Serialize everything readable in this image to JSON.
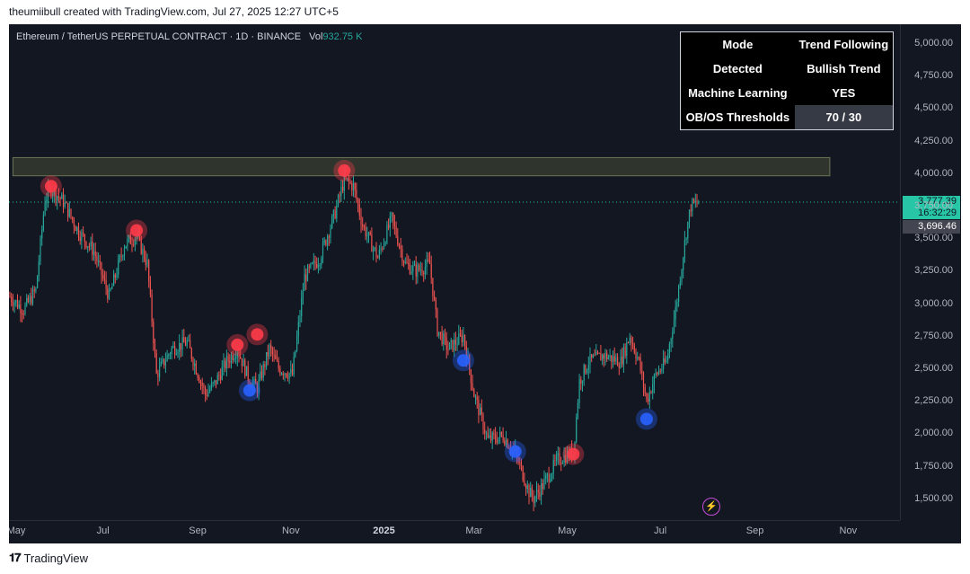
{
  "header": {
    "created_text": "theumiibull created with TradingView.com, Jul 27, 2025 12:27 UTC+5"
  },
  "symbol": {
    "title": "Ethereum / TetherUS PERPETUAL CONTRACT · 1D · BINANCE",
    "vol_label": "Vol",
    "vol_value": "932.75 K"
  },
  "info_table": {
    "rows": [
      {
        "label": "Mode",
        "value": "Trend Following"
      },
      {
        "label": "Detected",
        "value": "Bullish Trend"
      },
      {
        "label": "Machine Learning",
        "value": "YES"
      },
      {
        "label": "OB/OS Thresholds",
        "value": "70 / 30"
      }
    ]
  },
  "price_tags": {
    "last_price": "3,777.39",
    "countdown": "16:32:29",
    "prev_close": "3,696.46"
  },
  "footer": {
    "logo_text": "TradingView"
  },
  "colors": {
    "up": "#26a69a",
    "down": "#ef5350",
    "background": "#131722",
    "resistance_zone": "#3a4032",
    "signal_red": "#ff3b4a",
    "signal_blue": "#2962ff"
  },
  "chart_data": {
    "type": "candlestick",
    "title": "Ethereum / TetherUS PERPETUAL CONTRACT · 1D · BINANCE",
    "yticks": [
      "5,000.00",
      "4,750.00",
      "4,500.00",
      "4,250.00",
      "4,000.00",
      "3,750.00",
      "3,500.00",
      "3,250.00",
      "3,000.00",
      "2,750.00",
      "2,500.00",
      "2,250.00",
      "2,000.00",
      "1,750.00",
      "1,500.00"
    ],
    "ylim": [
      1400,
      5100
    ],
    "x_tick_labels": [
      "May",
      "Jul",
      "Sep",
      "Nov",
      "2025",
      "Mar",
      "May",
      "Jul",
      "Sep",
      "Nov"
    ],
    "close_series": [
      {
        "d": "2024-05-01",
        "v": 3050
      },
      {
        "d": "2024-05-10",
        "v": 2950
      },
      {
        "d": "2024-05-18",
        "v": 3100
      },
      {
        "d": "2024-05-24",
        "v": 3800
      },
      {
        "d": "2024-05-28",
        "v": 3880
      },
      {
        "d": "2024-06-05",
        "v": 3780
      },
      {
        "d": "2024-06-15",
        "v": 3550
      },
      {
        "d": "2024-06-25",
        "v": 3400
      },
      {
        "d": "2024-07-05",
        "v": 3050
      },
      {
        "d": "2024-07-15",
        "v": 3450
      },
      {
        "d": "2024-07-23",
        "v": 3520
      },
      {
        "d": "2024-07-30",
        "v": 3300
      },
      {
        "d": "2024-08-05",
        "v": 2450
      },
      {
        "d": "2024-08-15",
        "v": 2650
      },
      {
        "d": "2024-08-25",
        "v": 2700
      },
      {
        "d": "2024-09-06",
        "v": 2300
      },
      {
        "d": "2024-09-12",
        "v": 2380
      },
      {
        "d": "2024-09-20",
        "v": 2550
      },
      {
        "d": "2024-09-27",
        "v": 2650
      },
      {
        "d": "2024-10-05",
        "v": 2400
      },
      {
        "d": "2024-10-10",
        "v": 2350
      },
      {
        "d": "2024-10-18",
        "v": 2650
      },
      {
        "d": "2024-10-24",
        "v": 2500
      },
      {
        "d": "2024-11-02",
        "v": 2450
      },
      {
        "d": "2024-11-10",
        "v": 3200
      },
      {
        "d": "2024-11-20",
        "v": 3350
      },
      {
        "d": "2024-11-30",
        "v": 3700
      },
      {
        "d": "2024-12-06",
        "v": 3950
      },
      {
        "d": "2024-12-12",
        "v": 3900
      },
      {
        "d": "2024-12-18",
        "v": 3600
      },
      {
        "d": "2024-12-28",
        "v": 3350
      },
      {
        "d": "2025-01-06",
        "v": 3650
      },
      {
        "d": "2025-01-15",
        "v": 3300
      },
      {
        "d": "2025-01-22",
        "v": 3250
      },
      {
        "d": "2025-01-31",
        "v": 3300
      },
      {
        "d": "2025-02-05",
        "v": 2800
      },
      {
        "d": "2025-02-12",
        "v": 2650
      },
      {
        "d": "2025-02-22",
        "v": 2750
      },
      {
        "d": "2025-03-01",
        "v": 2300
      },
      {
        "d": "2025-03-10",
        "v": 1950
      },
      {
        "d": "2025-03-20",
        "v": 1980
      },
      {
        "d": "2025-03-28",
        "v": 1850
      },
      {
        "d": "2025-04-06",
        "v": 1550
      },
      {
        "d": "2025-04-09",
        "v": 1500
      },
      {
        "d": "2025-04-15",
        "v": 1600
      },
      {
        "d": "2025-04-25",
        "v": 1800
      },
      {
        "d": "2025-05-05",
        "v": 1850
      },
      {
        "d": "2025-05-09",
        "v": 2400
      },
      {
        "d": "2025-05-15",
        "v": 2550
      },
      {
        "d": "2025-05-25",
        "v": 2600
      },
      {
        "d": "2025-06-05",
        "v": 2550
      },
      {
        "d": "2025-06-11",
        "v": 2750
      },
      {
        "d": "2025-06-17",
        "v": 2550
      },
      {
        "d": "2025-06-22",
        "v": 2250
      },
      {
        "d": "2025-06-28",
        "v": 2450
      },
      {
        "d": "2025-07-05",
        "v": 2550
      },
      {
        "d": "2025-07-11",
        "v": 2950
      },
      {
        "d": "2025-07-18",
        "v": 3550
      },
      {
        "d": "2025-07-21",
        "v": 3750
      },
      {
        "d": "2025-07-27",
        "v": 3777.39
      }
    ],
    "resistance_zone": {
      "from": "2024-05-03",
      "to": "2025-10-20",
      "low": 3980,
      "high": 4120
    },
    "last_price": 3777.39,
    "sell_signals": [
      {
        "d": "2024-05-28",
        "v": 3900
      },
      {
        "d": "2024-07-23",
        "v": 3560
      },
      {
        "d": "2024-09-27",
        "v": 2680
      },
      {
        "d": "2024-10-10",
        "v": 2760
      },
      {
        "d": "2024-12-06",
        "v": 4020
      },
      {
        "d": "2025-05-05",
        "v": 1840
      }
    ],
    "buy_signals": [
      {
        "d": "2024-10-05",
        "v": 2330
      },
      {
        "d": "2025-02-22",
        "v": 2560
      },
      {
        "d": "2025-03-28",
        "v": 1860
      },
      {
        "d": "2025-06-22",
        "v": 2110
      }
    ]
  }
}
